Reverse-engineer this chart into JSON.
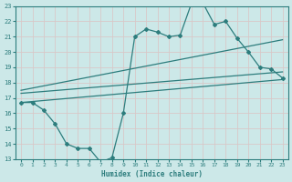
{
  "xlabel": "Humidex (Indice chaleur)",
  "bg_color": "#cce8e8",
  "grid_color": "#b8d8d8",
  "line_color": "#2d7d7d",
  "xlim": [
    -0.5,
    23.5
  ],
  "ylim": [
    13,
    23
  ],
  "xticks": [
    0,
    1,
    2,
    3,
    4,
    5,
    6,
    7,
    8,
    9,
    10,
    11,
    12,
    13,
    14,
    15,
    16,
    17,
    18,
    19,
    20,
    21,
    22,
    23
  ],
  "yticks": [
    13,
    14,
    15,
    16,
    17,
    18,
    19,
    20,
    21,
    22,
    23
  ],
  "main_x": [
    0,
    1,
    2,
    3,
    4,
    5,
    6,
    7,
    8,
    9,
    10,
    11,
    12,
    13,
    14,
    15,
    16,
    17,
    18,
    19,
    20,
    21,
    22,
    23
  ],
  "main_y": [
    16.7,
    16.7,
    16.2,
    15.3,
    14.0,
    13.7,
    13.7,
    12.8,
    13.1,
    16.0,
    21.0,
    21.5,
    21.3,
    21.0,
    21.1,
    23.2,
    23.2,
    21.8,
    22.0,
    20.9,
    20.0,
    19.0,
    18.9,
    18.3
  ],
  "line1_x": [
    0,
    23
  ],
  "line1_y": [
    16.7,
    18.2
  ],
  "line2_x": [
    0,
    23
  ],
  "line2_y": [
    17.3,
    18.7
  ],
  "line3_x": [
    0,
    23
  ],
  "line3_y": [
    17.5,
    20.8
  ]
}
